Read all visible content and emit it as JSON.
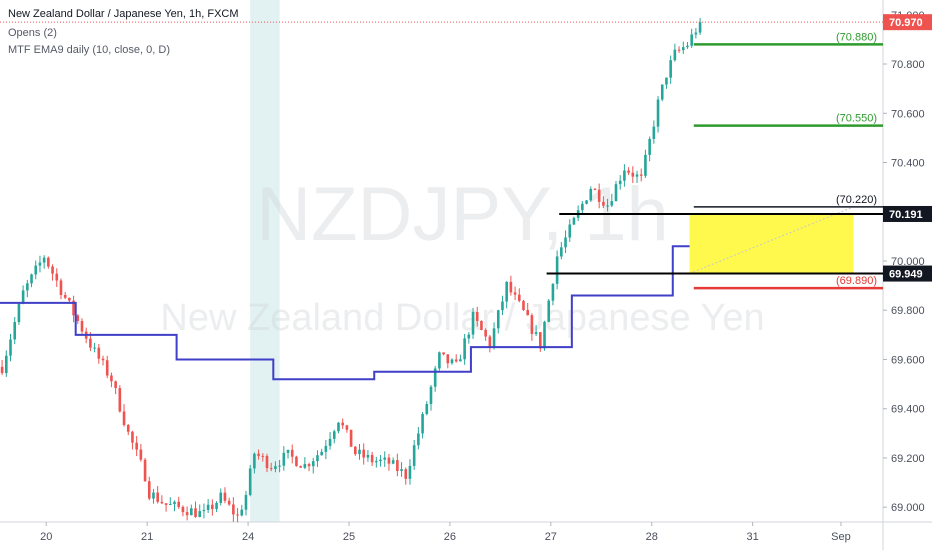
{
  "header": {
    "symbol_line": "New Zealand Dollar / Japanese Yen, 1h, FXCM",
    "indicator_1": "Opens (2)",
    "indicator_2": "MTF EMA9 daily (10, close, 0, D)"
  },
  "watermark": {
    "ticker": "NZDJPY, 1h",
    "name": "New Zealand Dollar / Japanese Yen"
  },
  "colors": {
    "bull": "#26a69a",
    "bear": "#ef5350",
    "ema": "#3f3fc8",
    "target": "#2e9b2e",
    "stop": "#e53935",
    "zone": "#fff94d",
    "price_tag": "#ef5350",
    "session_shade": "#d8eeee"
  },
  "chart_data": {
    "type": "candlestick",
    "y_axis": {
      "min": 68.94,
      "max": 71.06,
      "ticks": [
        "69.000",
        "69.200",
        "69.400",
        "69.600",
        "69.800",
        "70.000",
        "70.200",
        "70.400",
        "70.600",
        "70.800",
        "71.000"
      ],
      "tick_values": [
        69.0,
        69.2,
        69.4,
        69.6,
        69.8,
        70.0,
        70.2,
        70.4,
        70.6,
        70.8,
        71.0
      ]
    },
    "x_axis": {
      "labels": [
        "20",
        "21",
        "24",
        "25",
        "26",
        "27",
        "28",
        "31",
        "Sep"
      ],
      "label_hours": [
        11,
        35,
        59,
        83,
        107,
        131,
        155,
        179,
        200
      ]
    },
    "hours_visible": 210,
    "session_shade_hours": [
      59.5,
      66.5
    ],
    "candles_hours_per_bar": 1,
    "path_hours": [
      0,
      5,
      10,
      15,
      22,
      26,
      30,
      34,
      35,
      39,
      44,
      48,
      52,
      56,
      58,
      60,
      64,
      68,
      72,
      76,
      80,
      84,
      88,
      92,
      96,
      100,
      104,
      108,
      112,
      116,
      120,
      124,
      128,
      132,
      136,
      140,
      144,
      148,
      152,
      156,
      158,
      160,
      163,
      166
    ],
    "path_values": [
      69.57,
      69.87,
      70.02,
      69.85,
      69.63,
      69.52,
      69.3,
      69.13,
      69.06,
      69.01,
      68.99,
      68.97,
      69.04,
      68.96,
      69.05,
      69.22,
      69.17,
      69.21,
      69.17,
      69.23,
      69.36,
      69.22,
      69.19,
      69.18,
      69.13,
      69.36,
      69.61,
      69.57,
      69.77,
      69.66,
      69.9,
      69.79,
      69.66,
      70.02,
      70.16,
      70.3,
      70.23,
      70.38,
      70.33,
      70.64,
      70.76,
      70.84,
      70.88,
      70.97
    ],
    "ema_line": {
      "hours": [
        0,
        18,
        18,
        42,
        42,
        65,
        65,
        89,
        89,
        112,
        112,
        136,
        136,
        160,
        160,
        166
      ],
      "values": [
        69.83,
        69.83,
        69.7,
        69.7,
        69.6,
        69.6,
        69.52,
        69.52,
        69.55,
        69.55,
        69.65,
        69.65,
        69.86,
        69.86,
        70.06,
        70.06
      ]
    },
    "levels": [
      {
        "label": "(70.880)",
        "value": 70.88,
        "kind": "target",
        "from_hour": 165
      },
      {
        "label": "(70.550)",
        "value": 70.55,
        "kind": "target",
        "from_hour": 165
      },
      {
        "label": "(70.220)",
        "value": 70.22,
        "kind": "entry",
        "from_hour": 165
      },
      {
        "label": "(69.890)",
        "value": 69.89,
        "kind": "stop",
        "from_hour": 165
      }
    ],
    "horizontal_lines": [
      {
        "value": 70.191,
        "from_hour": 133,
        "tag": "70.191"
      },
      {
        "value": 69.949,
        "from_hour": 130,
        "tag": "69.949"
      }
    ],
    "zone": {
      "from_hour": 164,
      "to_hour": 203,
      "top": 70.191,
      "bottom": 69.949
    },
    "current_price": {
      "value": 70.97,
      "tag": "70.970"
    }
  }
}
